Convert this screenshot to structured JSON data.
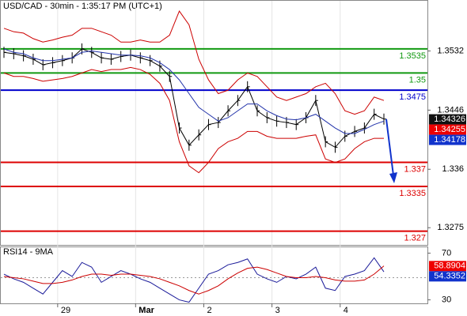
{
  "chart_data": {
    "type": "line",
    "title": "USD/CAD - 30min - 1:35:17 PM (UTC+1)",
    "categories": [
      null,
      null,
      null,
      null,
      null,
      null,
      "29",
      null,
      null,
      null,
      null,
      null,
      null,
      null,
      "Mar",
      null,
      null,
      null,
      null,
      null,
      null,
      "2",
      null,
      null,
      null,
      null,
      null,
      null,
      "3",
      null,
      null,
      null,
      null,
      null,
      null,
      "4",
      null,
      null,
      null,
      null
    ],
    "series": [
      {
        "name": "USD/CAD",
        "color": "#000000",
        "values": [
          1.353,
          1.3528,
          1.3525,
          1.352,
          1.3512,
          1.3515,
          1.3518,
          1.3522,
          1.3535,
          1.353,
          1.3522,
          1.352,
          1.3524,
          1.3526,
          1.3522,
          1.3518,
          1.351,
          1.3495,
          1.342,
          1.3395,
          1.341,
          1.3425,
          1.3428,
          1.3445,
          1.346,
          1.348,
          1.3445,
          1.3435,
          1.343,
          1.3428,
          1.3425,
          1.3435,
          1.346,
          1.34,
          1.3392,
          1.3408,
          1.3415,
          1.342,
          1.344,
          1.3433
        ]
      },
      {
        "color": "#cc0000",
        "values": [
          1.3565,
          1.356,
          1.3558,
          1.355,
          1.3545,
          1.3548,
          1.3552,
          1.3555,
          1.3565,
          1.3565,
          1.356,
          1.3555,
          1.3545,
          1.3545,
          1.3548,
          1.3545,
          1.3545,
          1.3555,
          1.359,
          1.357,
          1.352,
          1.349,
          1.347,
          1.3475,
          1.349,
          1.35,
          1.3495,
          1.348,
          1.3465,
          1.346,
          1.3465,
          1.347,
          1.348,
          1.3485,
          1.347,
          1.3445,
          1.344,
          1.3445,
          1.3465,
          1.346
        ]
      },
      {
        "color": "#cc0000",
        "values": [
          1.35,
          1.3495,
          1.3495,
          1.3492,
          1.3488,
          1.349,
          1.3492,
          1.3495,
          1.35,
          1.3505,
          1.3502,
          1.3505,
          1.3505,
          1.3508,
          1.3505,
          1.3498,
          1.3485,
          1.346,
          1.34,
          1.3365,
          1.3355,
          1.337,
          1.339,
          1.34,
          1.3405,
          1.3415,
          1.3415,
          1.3408,
          1.3405,
          1.3405,
          1.3405,
          1.3408,
          1.341,
          1.3375,
          1.337,
          1.3375,
          1.339,
          1.34,
          1.3405,
          1.3405
        ]
      },
      {
        "color": "#2233aa",
        "values": [
          1.3535,
          1.353,
          1.3528,
          1.3522,
          1.3518,
          1.3518,
          1.352,
          1.3522,
          1.353,
          1.3532,
          1.353,
          1.3528,
          1.3526,
          1.3526,
          1.3525,
          1.3522,
          1.3515,
          1.3505,
          1.349,
          1.347,
          1.345,
          1.344,
          1.343,
          1.3435,
          1.3445,
          1.3455,
          1.3455,
          1.3445,
          1.3438,
          1.3433,
          1.3432,
          1.3435,
          1.344,
          1.343,
          1.342,
          1.3412,
          1.3412,
          1.3418,
          1.3425,
          1.343
        ]
      }
    ],
    "ylim": [
      1.325,
      1.3605
    ],
    "yticks": [
      1.3532,
      1.3446,
      1.336,
      1.3275
    ],
    "levels": [
      {
        "value": 1.3535,
        "color": "#119911"
      },
      {
        "value": 1.35,
        "color": "#119911"
      },
      {
        "value": 1.3475,
        "color": "#0000cc"
      },
      {
        "value": 1.337,
        "color": "#dd0000"
      },
      {
        "value": 1.3335,
        "color": "#dd0000"
      },
      {
        "value": 1.327,
        "color": "#dd0000"
      }
    ],
    "price_badges": [
      {
        "value": 1.34326,
        "color": "#111111"
      },
      {
        "value": 1.34255,
        "color": "#ee0000"
      },
      {
        "value": 1.34178,
        "color": "#1133cc"
      }
    ],
    "rsi": {
      "title": "RSI14 - 9MA",
      "ylim": [
        27,
        75
      ],
      "yticks": [
        70,
        30
      ],
      "series": [
        {
          "color": "#1a1a99",
          "values": [
            52,
            48,
            45,
            40,
            35,
            45,
            55,
            50,
            62,
            58,
            45,
            50,
            55,
            52,
            48,
            45,
            40,
            35,
            30,
            28,
            40,
            52,
            55,
            60,
            62,
            65,
            52,
            48,
            45,
            50,
            48,
            52,
            58,
            40,
            38,
            50,
            52,
            55,
            66,
            54
          ]
        },
        {
          "color": "#cc0000",
          "values": [
            50,
            49,
            48,
            46,
            44,
            44,
            45,
            47,
            50,
            52,
            52,
            51,
            52,
            52,
            51,
            50,
            48,
            45,
            42,
            38,
            35,
            38,
            42,
            48,
            53,
            57,
            58,
            56,
            53,
            50,
            49,
            49,
            50,
            49,
            47,
            46,
            46,
            47,
            52,
            59
          ]
        }
      ],
      "badges": [
        {
          "value": 58.8904,
          "color": "#ee0000"
        },
        {
          "value": 54.3352,
          "color": "#1133cc"
        }
      ]
    }
  }
}
